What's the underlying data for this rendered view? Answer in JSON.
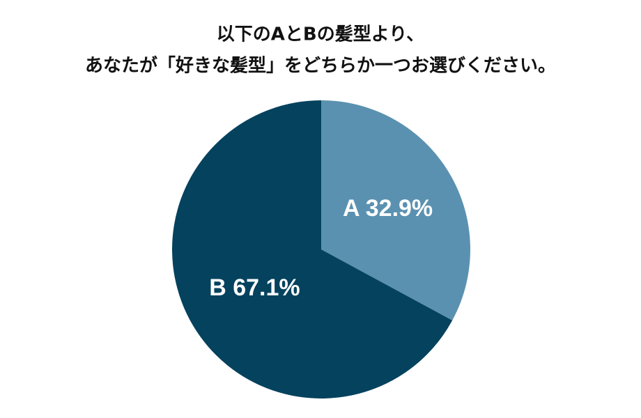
{
  "chart_data": {
    "type": "pie",
    "title": [
      "以下のAとBの髪型より、",
      "あなたが「好きな髪型」をどちらか一つお選びください。"
    ],
    "values": [
      32.9,
      67.1
    ],
    "value_labels": [
      "A 32.9%",
      "B 67.1%"
    ],
    "colors": [
      "#5b91b0",
      "#04425e"
    ]
  }
}
